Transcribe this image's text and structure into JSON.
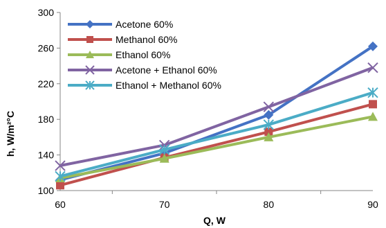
{
  "chart_data": {
    "type": "line",
    "xlabel": "Q, W",
    "ylabel": "h, W/m²°C",
    "ylim": [
      100,
      300
    ],
    "yticks": [
      100,
      140,
      180,
      220,
      260,
      300
    ],
    "categories": [
      "60",
      "70",
      "80",
      "90"
    ],
    "legend_position": "top-left inside",
    "grid": false,
    "series": [
      {
        "name": "Acetone 60%",
        "values": [
          112,
          142,
          185,
          262
        ],
        "color": "#4472C4",
        "marker": "diamond"
      },
      {
        "name": "Methanol 60%",
        "values": [
          106,
          137,
          166,
          197
        ],
        "color": "#C0504D",
        "marker": "square"
      },
      {
        "name": "Ethanol 60%",
        "values": [
          114,
          136,
          160,
          183
        ],
        "color": "#9BBB59",
        "marker": "triangle"
      },
      {
        "name": "Acetone + Ethanol  60%",
        "values": [
          128,
          151,
          194,
          238
        ],
        "color": "#8064A2",
        "marker": "x"
      },
      {
        "name": "Ethanol + Methanol  60%",
        "values": [
          116,
          146,
          174,
          210
        ],
        "color": "#4BACC6",
        "marker": "star"
      }
    ]
  }
}
